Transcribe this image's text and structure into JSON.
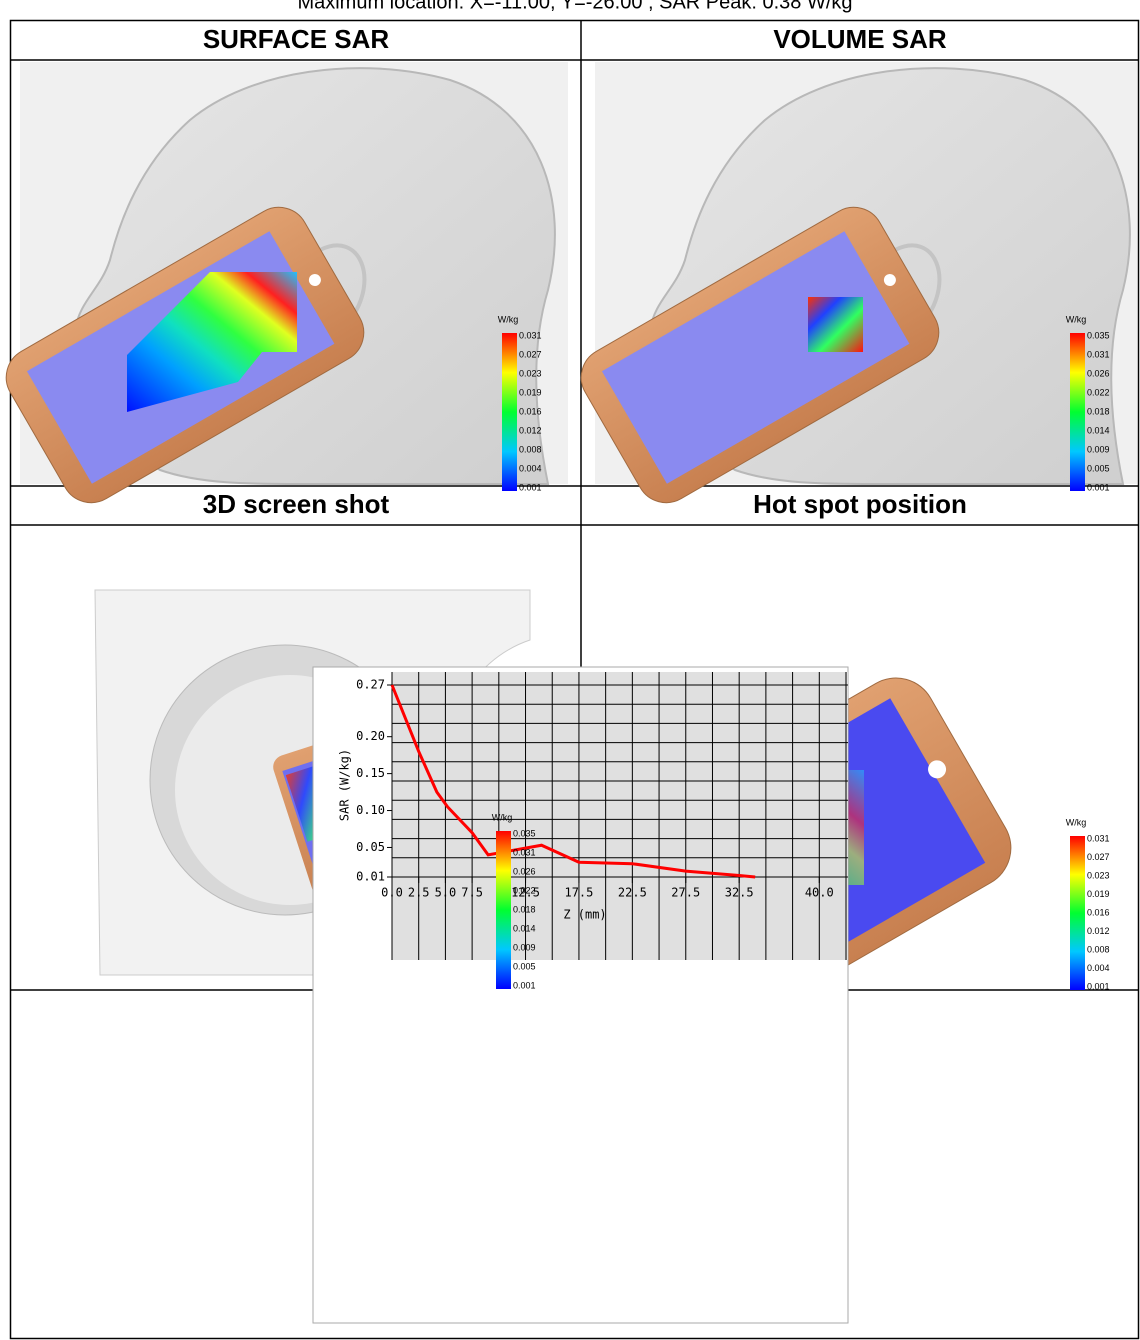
{
  "header": {
    "text": "Maximum location: X=-11.00, Y=-26.00 ; SAR Peak: 0.38 W/kg"
  },
  "panels": [
    {
      "title": "SURFACE SAR",
      "colorbar": {
        "unit": "W/kg",
        "labels": [
          0.031,
          0.027,
          0.023,
          0.019,
          0.016,
          0.012,
          0.008,
          0.004,
          0.001
        ]
      }
    },
    {
      "title": "VOLUME SAR",
      "colorbar": {
        "unit": "W/kg",
        "labels": [
          0.035,
          0.031,
          0.026,
          0.022,
          0.018,
          0.014,
          0.009,
          0.005,
          0.001
        ]
      }
    },
    {
      "title": "3D screen shot",
      "colorbar": {
        "unit": "W/kg",
        "labels": [
          0.035,
          0.031,
          0.026,
          0.022,
          0.018,
          0.014,
          0.009,
          0.005,
          0.001
        ]
      }
    },
    {
      "title": "Hot spot position",
      "colorbar": {
        "unit": "W/kg",
        "labels": [
          0.031,
          0.027,
          0.023,
          0.019,
          0.016,
          0.012,
          0.008,
          0.004,
          0.001
        ]
      }
    }
  ],
  "chart_data": {
    "type": "line",
    "x_label": "Z (mm)",
    "y_label": "SAR (W/kg)",
    "x": [
      0,
      2.5,
      4.2,
      5.2,
      7.5,
      9.0,
      14.0,
      17.5,
      22.5,
      27.5,
      32.5,
      34.0
    ],
    "series": [
      {
        "name": "SAR",
        "color": "#ff0000",
        "values": [
          0.27,
          0.18,
          0.125,
          0.105,
          0.07,
          0.04,
          0.053,
          0.03,
          0.028,
          0.018,
          0.012,
          0.01
        ]
      }
    ],
    "xlim": [
      0,
      42.5
    ],
    "ylim": [
      0.01,
      0.27
    ],
    "xticks": [
      {
        "value": 0,
        "label": "0.0"
      },
      2.5,
      {
        "value": 5,
        "label": "5.0"
      },
      7.5,
      12.5,
      17.5,
      22.5,
      27.5,
      32.5,
      {
        "value": 40,
        "label": "40.0"
      }
    ],
    "yticks": [
      0.27,
      {
        "value": 0.2,
        "label": "0.20"
      },
      0.15,
      {
        "value": 0.1,
        "label": "0.10"
      },
      0.05,
      0.01
    ],
    "xgrid": [
      0,
      2.5,
      5,
      7.5,
      10,
      12.5,
      15,
      17.5,
      20,
      22.5,
      25,
      27.5,
      30,
      32.5,
      35,
      37.5,
      40,
      42.5
    ],
    "ygrid": [
      0.01,
      0.036,
      0.062,
      0.088,
      0.114,
      0.14,
      0.166,
      0.192,
      0.218,
      0.244,
      0.27
    ],
    "grid": true
  }
}
